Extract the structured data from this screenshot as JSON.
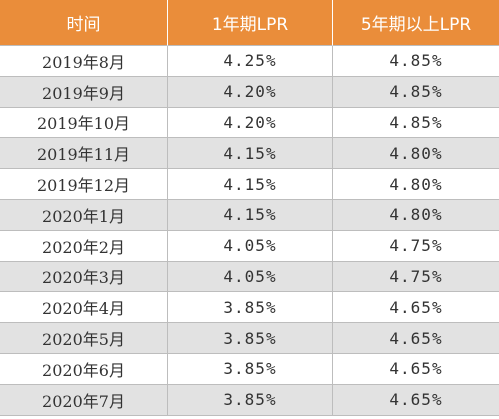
{
  "table": {
    "headers": [
      "时间",
      "1年期LPR",
      "5年期以上LPR"
    ],
    "rows": [
      [
        "2019年8月",
        "4.25%",
        "4.85%"
      ],
      [
        "2019年9月",
        "4.20%",
        "4.85%"
      ],
      [
        "2019年10月",
        "4.20%",
        "4.85%"
      ],
      [
        "2019年11月",
        "4.15%",
        "4.80%"
      ],
      [
        "2019年12月",
        "4.15%",
        "4.80%"
      ],
      [
        "2020年1月",
        "4.15%",
        "4.80%"
      ],
      [
        "2020年2月",
        "4.05%",
        "4.75%"
      ],
      [
        "2020年3月",
        "4.05%",
        "4.75%"
      ],
      [
        "2020年4月",
        "3.85%",
        "4.65%"
      ],
      [
        "2020年5月",
        "3.85%",
        "4.65%"
      ],
      [
        "2020年6月",
        "3.85%",
        "4.65%"
      ],
      [
        "2020年7月",
        "3.85%",
        "4.65%"
      ]
    ]
  },
  "overlay": {
    "line1": "",
    "line2": ""
  },
  "colors": {
    "header_bg": "#ea8d3a",
    "stripe": "#e2e2e2"
  }
}
